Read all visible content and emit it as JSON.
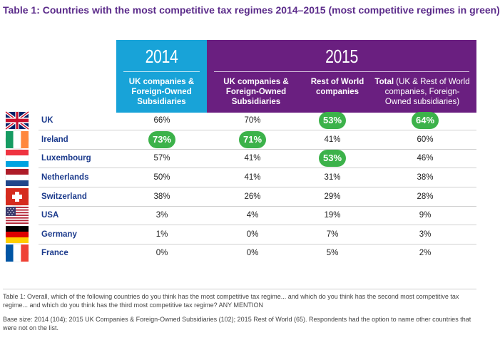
{
  "title": "Table 1: Countries with the most competitive tax regimes 2014–2015 (most competitive regimes in green)",
  "years": {
    "y2014": "2014",
    "y2015": "2015"
  },
  "columns": {
    "c1": "UK companies & Foreign-Owned Subsidiaries",
    "c2": "UK companies & Foreign-Owned Subsidiaries",
    "c3": "Rest of World companies",
    "c4_bold": "Total",
    "c4_rest": " (UK & Rest of World companies, Foreign-Owned subsidiaries)"
  },
  "rows": [
    {
      "country": "UK",
      "flag": "uk-flag",
      "v": [
        "66%",
        "70%",
        "53%",
        "64%"
      ],
      "hl": [
        false,
        false,
        true,
        true
      ]
    },
    {
      "country": "Ireland",
      "flag": "ireland-flag",
      "v": [
        "73%",
        "71%",
        "41%",
        "60%"
      ],
      "hl": [
        true,
        true,
        false,
        false
      ]
    },
    {
      "country": "Luxembourg",
      "flag": "luxembourg-flag",
      "v": [
        "57%",
        "41%",
        "53%",
        "46%"
      ],
      "hl": [
        false,
        false,
        true,
        false
      ]
    },
    {
      "country": "Netherlands",
      "flag": "netherlands-flag",
      "v": [
        "50%",
        "41%",
        "31%",
        "38%"
      ],
      "hl": [
        false,
        false,
        false,
        false
      ]
    },
    {
      "country": "Switzerland",
      "flag": "switzerland-flag",
      "v": [
        "38%",
        "26%",
        "29%",
        "28%"
      ],
      "hl": [
        false,
        false,
        false,
        false
      ]
    },
    {
      "country": "USA",
      "flag": "usa-flag",
      "v": [
        "3%",
        "4%",
        "19%",
        "9%"
      ],
      "hl": [
        false,
        false,
        false,
        false
      ]
    },
    {
      "country": "Germany",
      "flag": "germany-flag",
      "v": [
        "1%",
        "0%",
        "7%",
        "3%"
      ],
      "hl": [
        false,
        false,
        false,
        false
      ]
    },
    {
      "country": "France",
      "flag": "france-flag",
      "v": [
        "0%",
        "0%",
        "5%",
        "2%"
      ],
      "hl": [
        false,
        false,
        false,
        false
      ]
    }
  ],
  "colors": {
    "highlight": "#3cb24a",
    "blue": "#18a3d8",
    "purple": "#6a1f80"
  },
  "footnote1": "Table 1: Overall, which of the following countries do you think has the most competitive tax regime... and which do you think has the second most competitive tax regime... and which do you think has the third most competitive tax regime?  ANY MENTION",
  "footnote2": "Base size: 2014 (104); 2015 UK Companies & Foreign-Owned Subsidiaries (102); 2015 Rest of World (65). Respondents had the option to name other countries that were not on the list."
}
